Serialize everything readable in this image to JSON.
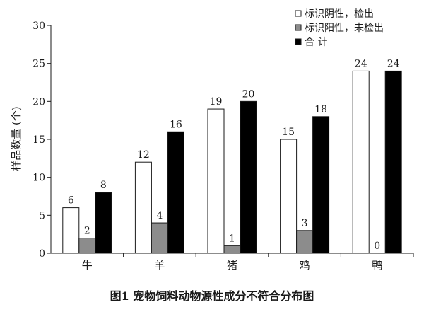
{
  "chart_data": {
    "type": "bar",
    "caption": "图1  宠物饲料动物源性成分不符合分布图",
    "ylabel": "样品数量 (个)",
    "xlabel": "",
    "ylim": [
      0,
      30
    ],
    "yticks": [
      0,
      5,
      10,
      15,
      20,
      25,
      30
    ],
    "categories": [
      "牛",
      "羊",
      "猪",
      "鸡",
      "鸭"
    ],
    "series": [
      {
        "name": "标识阴性，检出",
        "values": [
          6,
          12,
          19,
          15,
          24
        ],
        "color": "#ffffff"
      },
      {
        "name": "标识阳性，未检出",
        "values": [
          2,
          4,
          1,
          3,
          0
        ],
        "color": "#8c8c8c"
      },
      {
        "name": "合 计",
        "values": [
          8,
          16,
          20,
          18,
          24
        ],
        "color": "#000000"
      }
    ],
    "legend_position": "top-right",
    "grid": false
  }
}
